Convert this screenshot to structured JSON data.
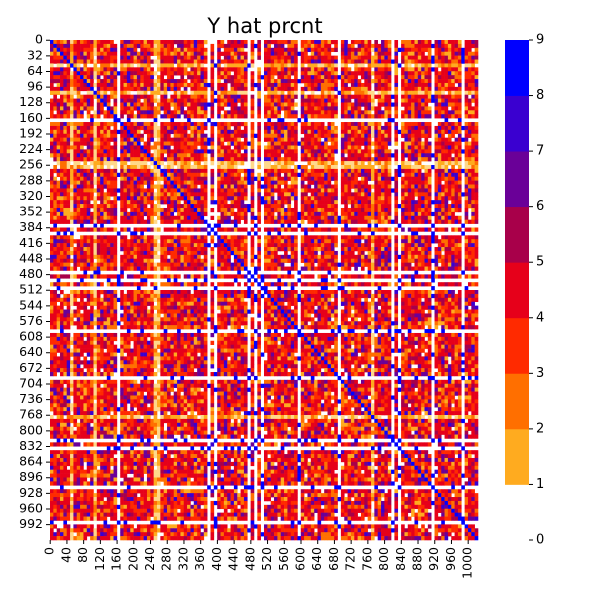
{
  "chart_data": {
    "type": "heatmap",
    "title": "Y hat prcnt",
    "xlabel": "",
    "ylabel": "",
    "n_rows": 1024,
    "n_cols": 1024,
    "x_tick_labels": [
      "0",
      "40",
      "80",
      "120",
      "160",
      "200",
      "240",
      "280",
      "320",
      "360",
      "400",
      "440",
      "480",
      "520",
      "560",
      "600",
      "640",
      "680",
      "720",
      "760",
      "800",
      "840",
      "880",
      "920",
      "960",
      "1000"
    ],
    "x_tick_values": [
      0,
      40,
      80,
      120,
      160,
      200,
      240,
      280,
      320,
      360,
      400,
      440,
      480,
      520,
      560,
      600,
      640,
      680,
      720,
      760,
      800,
      840,
      880,
      920,
      960,
      1000
    ],
    "y_tick_labels": [
      "0",
      "32",
      "64",
      "96",
      "128",
      "160",
      "192",
      "224",
      "256",
      "288",
      "320",
      "352",
      "384",
      "416",
      "448",
      "480",
      "512",
      "544",
      "576",
      "608",
      "640",
      "672",
      "704",
      "736",
      "768",
      "800",
      "832",
      "864",
      "896",
      "928",
      "960",
      "992"
    ],
    "y_tick_values": [
      0,
      32,
      64,
      96,
      128,
      160,
      192,
      224,
      256,
      288,
      320,
      352,
      384,
      416,
      448,
      480,
      512,
      544,
      576,
      608,
      640,
      672,
      704,
      736,
      768,
      800,
      832,
      864,
      896,
      928,
      960,
      992
    ],
    "colorbar": {
      "min": 0,
      "max": 9,
      "tick_labels": [
        "0",
        "1",
        "2",
        "3",
        "4",
        "5",
        "6",
        "7",
        "8",
        "9"
      ],
      "tick_values": [
        0,
        1,
        2,
        3,
        4,
        5,
        6,
        7,
        8,
        9
      ],
      "colors": [
        "#ffffff",
        "#ffd88a",
        "#ffab1f",
        "#ff6f00",
        "#ff2a00",
        "#e6001a",
        "#a8004a",
        "#6a0098",
        "#3a00d0",
        "#0000ff"
      ]
    }
  }
}
